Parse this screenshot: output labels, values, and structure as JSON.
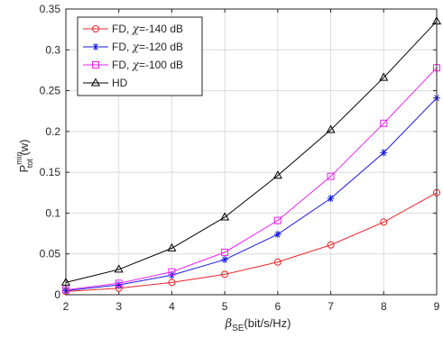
{
  "chart_data": {
    "type": "line",
    "xlabel": {
      "main": "β",
      "sub": "SE",
      "unit": "(bit/s/Hz)"
    },
    "ylabel": {
      "main": "P",
      "sup": "min",
      "sub": "tot",
      "unit": " (w)"
    },
    "xlim": [
      2,
      9
    ],
    "ylim": [
      0,
      0.35
    ],
    "x_ticks": [
      2,
      3,
      4,
      5,
      6,
      7,
      8,
      9
    ],
    "x_tick_labels": [
      "2",
      "3",
      "4",
      "5",
      "6",
      "7",
      "8",
      "9"
    ],
    "y_ticks": [
      0,
      0.05,
      0.1,
      0.15,
      0.2,
      0.25,
      0.3,
      0.35
    ],
    "y_tick_labels": [
      "0",
      "0.05",
      "0.1",
      "0.15",
      "0.2",
      "0.25",
      "0.3",
      "0.35"
    ],
    "grid": true,
    "legend_position": "top-left",
    "x": [
      2,
      3,
      4,
      5,
      6,
      7,
      8,
      9
    ],
    "series": [
      {
        "name": "FD, χ=-140 dB",
        "name_parts": [
          "FD, ",
          "χ",
          "=-140 dB"
        ],
        "color": "#e8262a",
        "marker": "circle",
        "values": [
          0.004,
          0.008,
          0.015,
          0.025,
          0.04,
          0.061,
          0.089,
          0.125
        ]
      },
      {
        "name": "FD, χ=-120 dB",
        "name_parts": [
          "FD, ",
          "χ",
          "=-120 dB"
        ],
        "color": "#1a1ae6",
        "marker": "asterisk",
        "values": [
          0.005,
          0.012,
          0.024,
          0.043,
          0.074,
          0.118,
          0.174,
          0.241
        ]
      },
      {
        "name": "FD, χ=-100 dB",
        "name_parts": [
          "FD, ",
          "χ",
          "=-100 dB"
        ],
        "color": "#ee22ee",
        "marker": "square",
        "values": [
          0.006,
          0.014,
          0.028,
          0.052,
          0.091,
          0.145,
          0.21,
          0.278
        ]
      },
      {
        "name": "HD",
        "name_parts": [
          "HD",
          "",
          ""
        ],
        "color": "#000000",
        "marker": "triangle",
        "values": [
          0.015,
          0.031,
          0.057,
          0.095,
          0.146,
          0.202,
          0.266,
          0.335
        ]
      }
    ]
  }
}
